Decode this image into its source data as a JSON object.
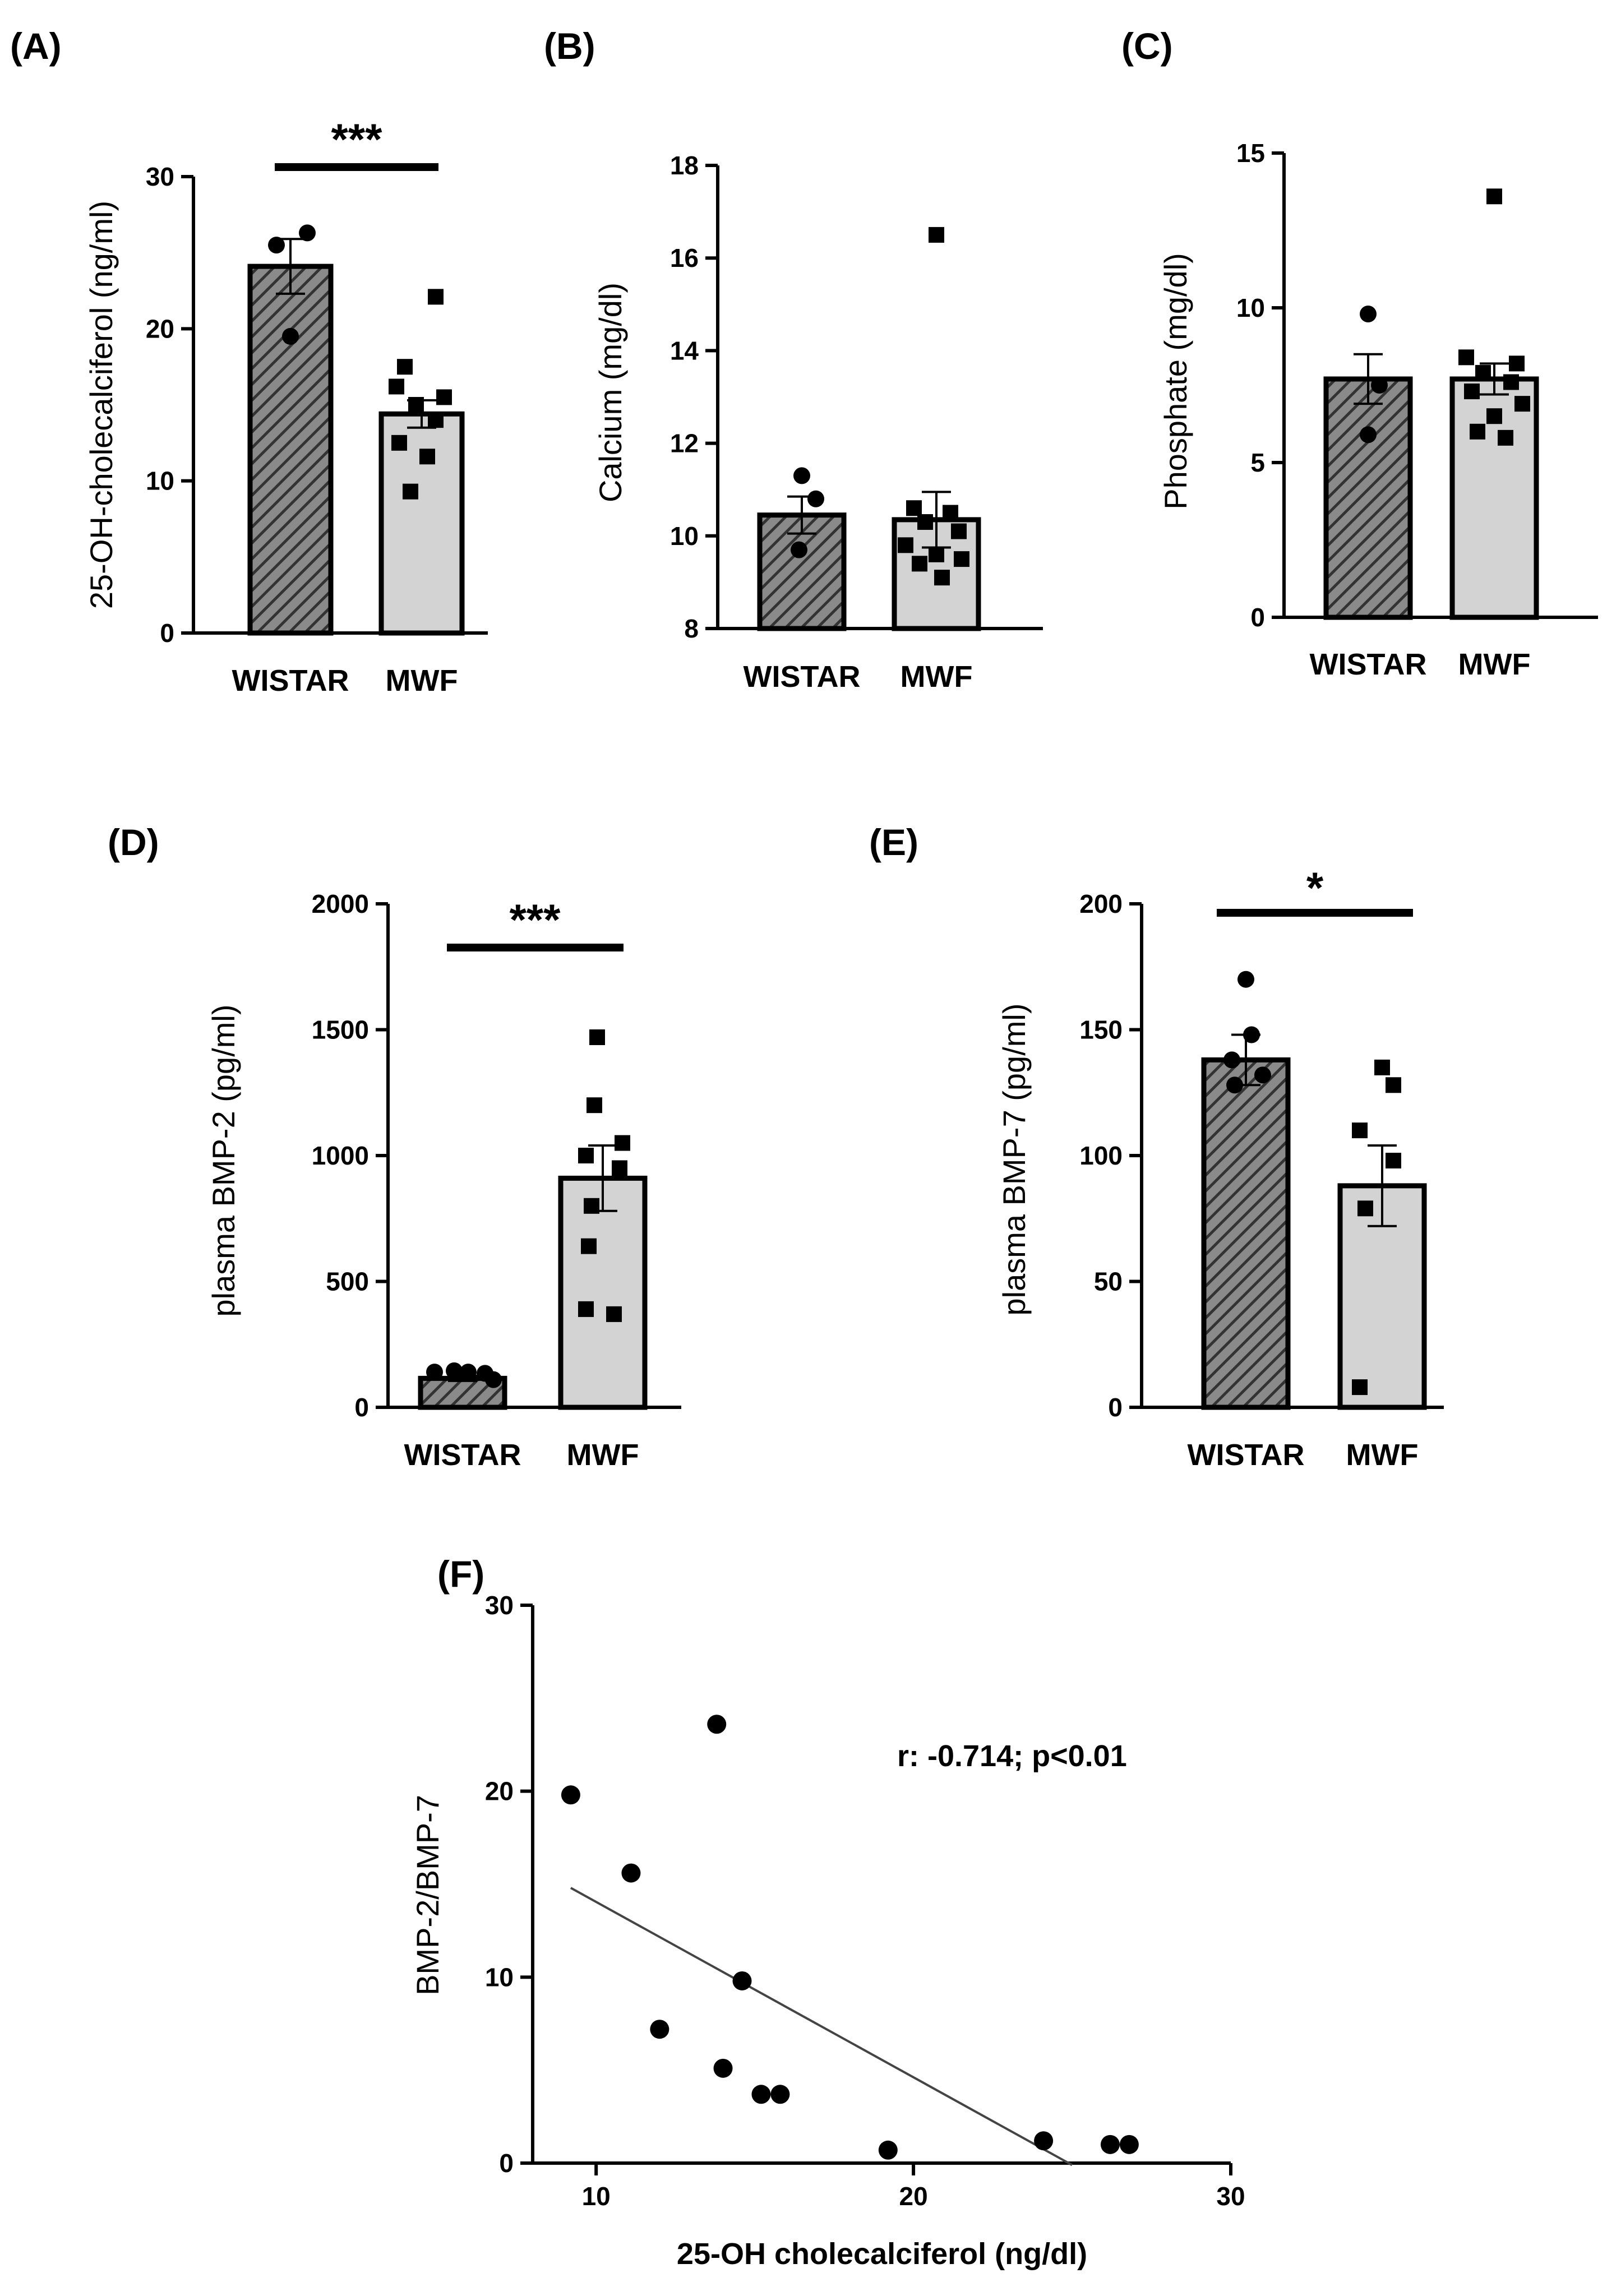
{
  "chart_data": [
    {
      "panel": "(A)",
      "type": "bar",
      "categories": [
        "WISTAR",
        "MWF"
      ],
      "values": [
        24.1,
        14.4
      ],
      "sem": [
        1.8,
        0.9
      ],
      "ylabel": "25-OH-cholecalciferol (ng/ml)",
      "ylim": [
        0,
        30
      ],
      "yticks": [
        0,
        10,
        20,
        30
      ],
      "significance": "***",
      "points": [
        [
          25.5,
          26.3,
          19.5
        ],
        [
          22.1,
          17.5,
          16.2,
          15.5,
          15.0,
          14.0,
          12.5,
          11.6,
          9.3
        ]
      ]
    },
    {
      "panel": "(B)",
      "type": "bar",
      "categories": [
        "WISTAR",
        "MWF"
      ],
      "values": [
        10.45,
        10.35
      ],
      "sem": [
        0.4,
        0.6
      ],
      "ylabel": "Calcium (mg/dl)",
      "ylim": [
        8,
        18
      ],
      "yticks": [
        8,
        10,
        12,
        14,
        16,
        18
      ],
      "points": [
        [
          11.3,
          10.8,
          9.7
        ],
        [
          16.5,
          10.6,
          10.5,
          10.3,
          10.1,
          9.8,
          9.6,
          9.5,
          9.4,
          9.1
        ]
      ]
    },
    {
      "panel": "(C)",
      "type": "bar",
      "categories": [
        "WISTAR",
        "MWF"
      ],
      "values": [
        7.7,
        7.7
      ],
      "sem": [
        0.8,
        0.5
      ],
      "ylabel": "Phosphate (mg/dl)",
      "ylim": [
        0,
        15
      ],
      "yticks": [
        0,
        5,
        10,
        15
      ],
      "points": [
        [
          9.8,
          7.5,
          5.9
        ],
        [
          13.6,
          8.4,
          8.2,
          7.9,
          7.6,
          7.3,
          6.9,
          6.5,
          6.0,
          5.8
        ]
      ]
    },
    {
      "panel": "(D)",
      "type": "bar",
      "categories": [
        "WISTAR",
        "MWF"
      ],
      "values": [
        115,
        910
      ],
      "sem": [
        10,
        130
      ],
      "ylabel": "plasma BMP-2 (pg/ml)",
      "ylim": [
        0,
        2000
      ],
      "yticks": [
        0,
        500,
        1000,
        1500,
        2000
      ],
      "significance": "***",
      "points": [
        [
          140,
          145,
          140,
          135,
          110
        ],
        [
          1470,
          1200,
          1050,
          1000,
          950,
          800,
          640,
          390,
          370
        ]
      ]
    },
    {
      "panel": "(E)",
      "type": "bar",
      "categories": [
        "WISTAR",
        "MWF"
      ],
      "values": [
        138,
        88
      ],
      "sem": [
        10,
        16
      ],
      "ylabel": "plasma BMP-7 (pg/ml)",
      "ylim": [
        0,
        200
      ],
      "yticks": [
        0,
        50,
        100,
        150,
        200
      ],
      "significance": "*",
      "points": [
        [
          170,
          148,
          138,
          132,
          128
        ],
        [
          135,
          128,
          110,
          98,
          79,
          8
        ]
      ]
    },
    {
      "panel": "(F)",
      "type": "scatter",
      "x": [
        9.2,
        11.1,
        12.0,
        13.8,
        14.0,
        14.6,
        15.2,
        15.8,
        19.2,
        24.1,
        26.2,
        26.8
      ],
      "y": [
        19.8,
        15.6,
        7.2,
        23.6,
        5.1,
        9.8,
        3.7,
        3.7,
        0.7,
        1.2,
        1.0,
        1.0
      ],
      "fit": [
        [
          9.2,
          14.8
        ],
        [
          25.0,
          -0.1
        ]
      ],
      "xlabel": "25-OH cholecalciferol (ng/dl)",
      "ylabel": "BMP-2/BMP-7",
      "xlim": [
        8,
        30
      ],
      "ylim": [
        0,
        30
      ],
      "xticks": [
        10,
        20,
        30
      ],
      "yticks": [
        0,
        10,
        20,
        30
      ],
      "annotation": "r: -0.714; p<0.01"
    }
  ]
}
